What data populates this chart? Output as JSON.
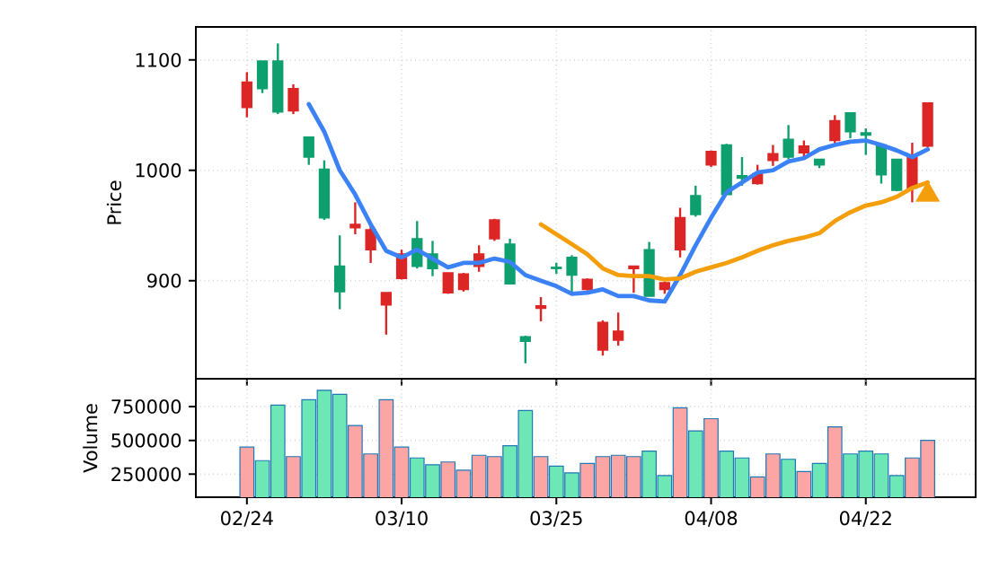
{
  "chart_data": [
    {
      "type": "candlestick",
      "ylabel": "Price",
      "categories": [
        null,
        null,
        null,
        null,
        null,
        null,
        null,
        null,
        null,
        null,
        null,
        null,
        null,
        null,
        null,
        null,
        null,
        null,
        null,
        null,
        null,
        null,
        null,
        null,
        null,
        null,
        null,
        null,
        null,
        null,
        null,
        null,
        null,
        null,
        null,
        null,
        null,
        null,
        null,
        null,
        null,
        null,
        null,
        null,
        null
      ],
      "ohlc": [
        [
          1080,
          1089,
          1048,
          1057
        ],
        [
          1074,
          1099,
          1070,
          1099
        ],
        [
          1053,
          1115,
          1051,
          1099
        ],
        [
          1074,
          1078,
          1051,
          1054
        ],
        [
          1012,
          1030,
          1005,
          1030
        ],
        [
          957,
          1009,
          955,
          1001
        ],
        [
          890,
          941,
          874,
          913
        ],
        [
          951,
          971,
          942,
          948
        ],
        [
          946,
          951,
          916,
          928
        ],
        [
          889,
          889,
          851,
          878
        ],
        [
          924,
          928,
          901,
          902
        ],
        [
          913,
          954,
          911,
          938
        ],
        [
          911,
          936,
          904,
          924
        ],
        [
          907,
          907,
          888,
          889
        ],
        [
          906,
          907,
          890,
          892
        ],
        [
          924,
          932,
          908,
          913
        ],
        [
          955,
          956,
          936,
          938
        ],
        [
          897,
          938,
          897,
          933
        ],
        [
          845,
          850,
          825,
          849
        ],
        [
          877,
          885,
          863,
          875
        ],
        [
          911,
          916,
          906,
          912
        ],
        [
          905,
          923,
          889,
          921
        ],
        [
          901,
          902,
          891,
          892
        ],
        [
          862,
          864,
          832,
          837
        ],
        [
          854,
          871,
          841,
          846
        ],
        [
          913,
          913,
          889,
          911
        ],
        [
          886,
          935,
          886,
          928
        ],
        [
          898,
          899,
          888,
          892
        ],
        [
          957,
          966,
          921,
          928
        ],
        [
          960,
          986,
          958,
          977
        ],
        [
          1017,
          1018,
          1003,
          1005
        ],
        [
          978,
          1024,
          978,
          1023
        ],
        [
          993,
          1012,
          986,
          995
        ],
        [
          997,
          1005,
          987,
          988
        ],
        [
          1015,
          1023,
          1004,
          1009
        ],
        [
          1012,
          1041,
          1010,
          1028
        ],
        [
          1022,
          1027,
          1012,
          1016
        ],
        [
          1005,
          1010,
          1002,
          1010
        ],
        [
          1045,
          1050,
          1024,
          1027
        ],
        [
          1035,
          1052,
          1029,
          1052
        ],
        [
          1032,
          1038,
          1014,
          1034
        ],
        [
          996,
          1024,
          988,
          1023
        ],
        [
          982,
          1010,
          981,
          1010
        ],
        [
          1012,
          1025,
          971,
          984
        ],
        [
          1061,
          1061,
          1021,
          1022
        ]
      ],
      "colors": [
        "#dc2626",
        "#0e9f6e",
        "#0e9f6e",
        "#dc2626",
        "#0e9f6e",
        "#0e9f6e",
        "#0e9f6e",
        "#dc2626",
        "#dc2626",
        "#dc2626",
        "#dc2626",
        "#0e9f6e",
        "#0e9f6e",
        "#dc2626",
        "#dc2626",
        "#dc2626",
        "#dc2626",
        "#0e9f6e",
        "#0e9f6e",
        "#dc2626",
        "#0e9f6e",
        "#0e9f6e",
        "#dc2626",
        "#dc2626",
        "#dc2626",
        "#dc2626",
        "#0e9f6e",
        "#dc2626",
        "#dc2626",
        "#0e9f6e",
        "#dc2626",
        "#0e9f6e",
        "#0e9f6e",
        "#dc2626",
        "#dc2626",
        "#0e9f6e",
        "#dc2626",
        "#0e9f6e",
        "#dc2626",
        "#0e9f6e",
        "#0e9f6e",
        "#0e9f6e",
        "#0e9f6e",
        "#dc2626",
        "#dc2626"
      ],
      "series": [
        {
          "type": "line",
          "color": "#3b82f6",
          "values": [
            null,
            null,
            null,
            null,
            1060,
            1035,
            1000,
            978,
            951,
            927,
            921,
            928,
            920,
            912,
            916,
            916,
            920,
            917,
            905,
            900,
            895,
            888,
            889,
            892,
            886,
            886,
            882,
            881,
            905,
            932,
            957,
            980,
            989,
            998,
            1000,
            1008,
            1011,
            1019,
            1023,
            1026,
            1027,
            1023,
            1018,
            1012,
            1019
          ]
        },
        {
          "type": "line",
          "color": "#f59e0b",
          "values": [
            null,
            null,
            null,
            null,
            null,
            null,
            null,
            null,
            null,
            null,
            null,
            null,
            null,
            null,
            null,
            null,
            null,
            null,
            null,
            951,
            942,
            933,
            924,
            911,
            905,
            904,
            904,
            901,
            902,
            908,
            912,
            916,
            921,
            927,
            932,
            936,
            939,
            943,
            954,
            962,
            968,
            971,
            976,
            984,
            989
          ]
        },
        {
          "type": "scatter",
          "color": "#f59e0b",
          "marker": "triangle",
          "values": [
            null,
            null,
            null,
            null,
            null,
            null,
            null,
            null,
            null,
            null,
            null,
            null,
            null,
            null,
            null,
            null,
            null,
            null,
            null,
            null,
            null,
            null,
            null,
            null,
            null,
            null,
            null,
            null,
            null,
            null,
            null,
            null,
            null,
            null,
            null,
            null,
            null,
            null,
            null,
            null,
            null,
            null,
            null,
            null,
            978
          ]
        }
      ],
      "ylim": [
        811,
        1130
      ],
      "yticks": [
        900,
        1000,
        1100
      ],
      "grid": true,
      "tick_labels": "y"
    },
    {
      "type": "bar",
      "ylabel": "Volume",
      "categories": [
        "02/24",
        null,
        null,
        null,
        null,
        null,
        null,
        null,
        null,
        null,
        "03/10",
        null,
        null,
        null,
        null,
        null,
        null,
        null,
        null,
        null,
        "03/25",
        null,
        null,
        null,
        null,
        null,
        null,
        null,
        null,
        null,
        "04/08",
        null,
        null,
        null,
        null,
        null,
        null,
        null,
        null,
        null,
        "04/22",
        null,
        null,
        null,
        null
      ],
      "values": [
        450000,
        350000,
        760000,
        380000,
        800000,
        870000,
        840000,
        610000,
        400000,
        800000,
        450000,
        370000,
        320000,
        340000,
        280000,
        390000,
        380000,
        460000,
        720000,
        380000,
        310000,
        260000,
        330000,
        380000,
        390000,
        380000,
        420000,
        240000,
        740000,
        570000,
        660000,
        420000,
        370000,
        230000,
        400000,
        360000,
        270000,
        330000,
        600000,
        400000,
        420000,
        400000,
        240000,
        370000,
        500000
      ],
      "colors": [
        "#fca5a5",
        "#6ee7b7",
        "#6ee7b7",
        "#fca5a5",
        "#6ee7b7",
        "#6ee7b7",
        "#6ee7b7",
        "#fca5a5",
        "#fca5a5",
        "#fca5a5",
        "#fca5a5",
        "#6ee7b7",
        "#6ee7b7",
        "#fca5a5",
        "#fca5a5",
        "#fca5a5",
        "#fca5a5",
        "#6ee7b7",
        "#6ee7b7",
        "#fca5a5",
        "#6ee7b7",
        "#6ee7b7",
        "#fca5a5",
        "#fca5a5",
        "#fca5a5",
        "#fca5a5",
        "#6ee7b7",
        "#6ee7b7",
        "#fca5a5",
        "#6ee7b7",
        "#fca5a5",
        "#6ee7b7",
        "#6ee7b7",
        "#fca5a5",
        "#fca5a5",
        "#6ee7b7",
        "#fca5a5",
        "#6ee7b7",
        "#fca5a5",
        "#6ee7b7",
        "#6ee7b7",
        "#6ee7b7",
        "#6ee7b7",
        "#fca5a5",
        "#fca5a5"
      ],
      "ylim": [
        80000,
        955000
      ],
      "yticks": [
        250000,
        500000,
        750000
      ],
      "grid": true
    }
  ]
}
